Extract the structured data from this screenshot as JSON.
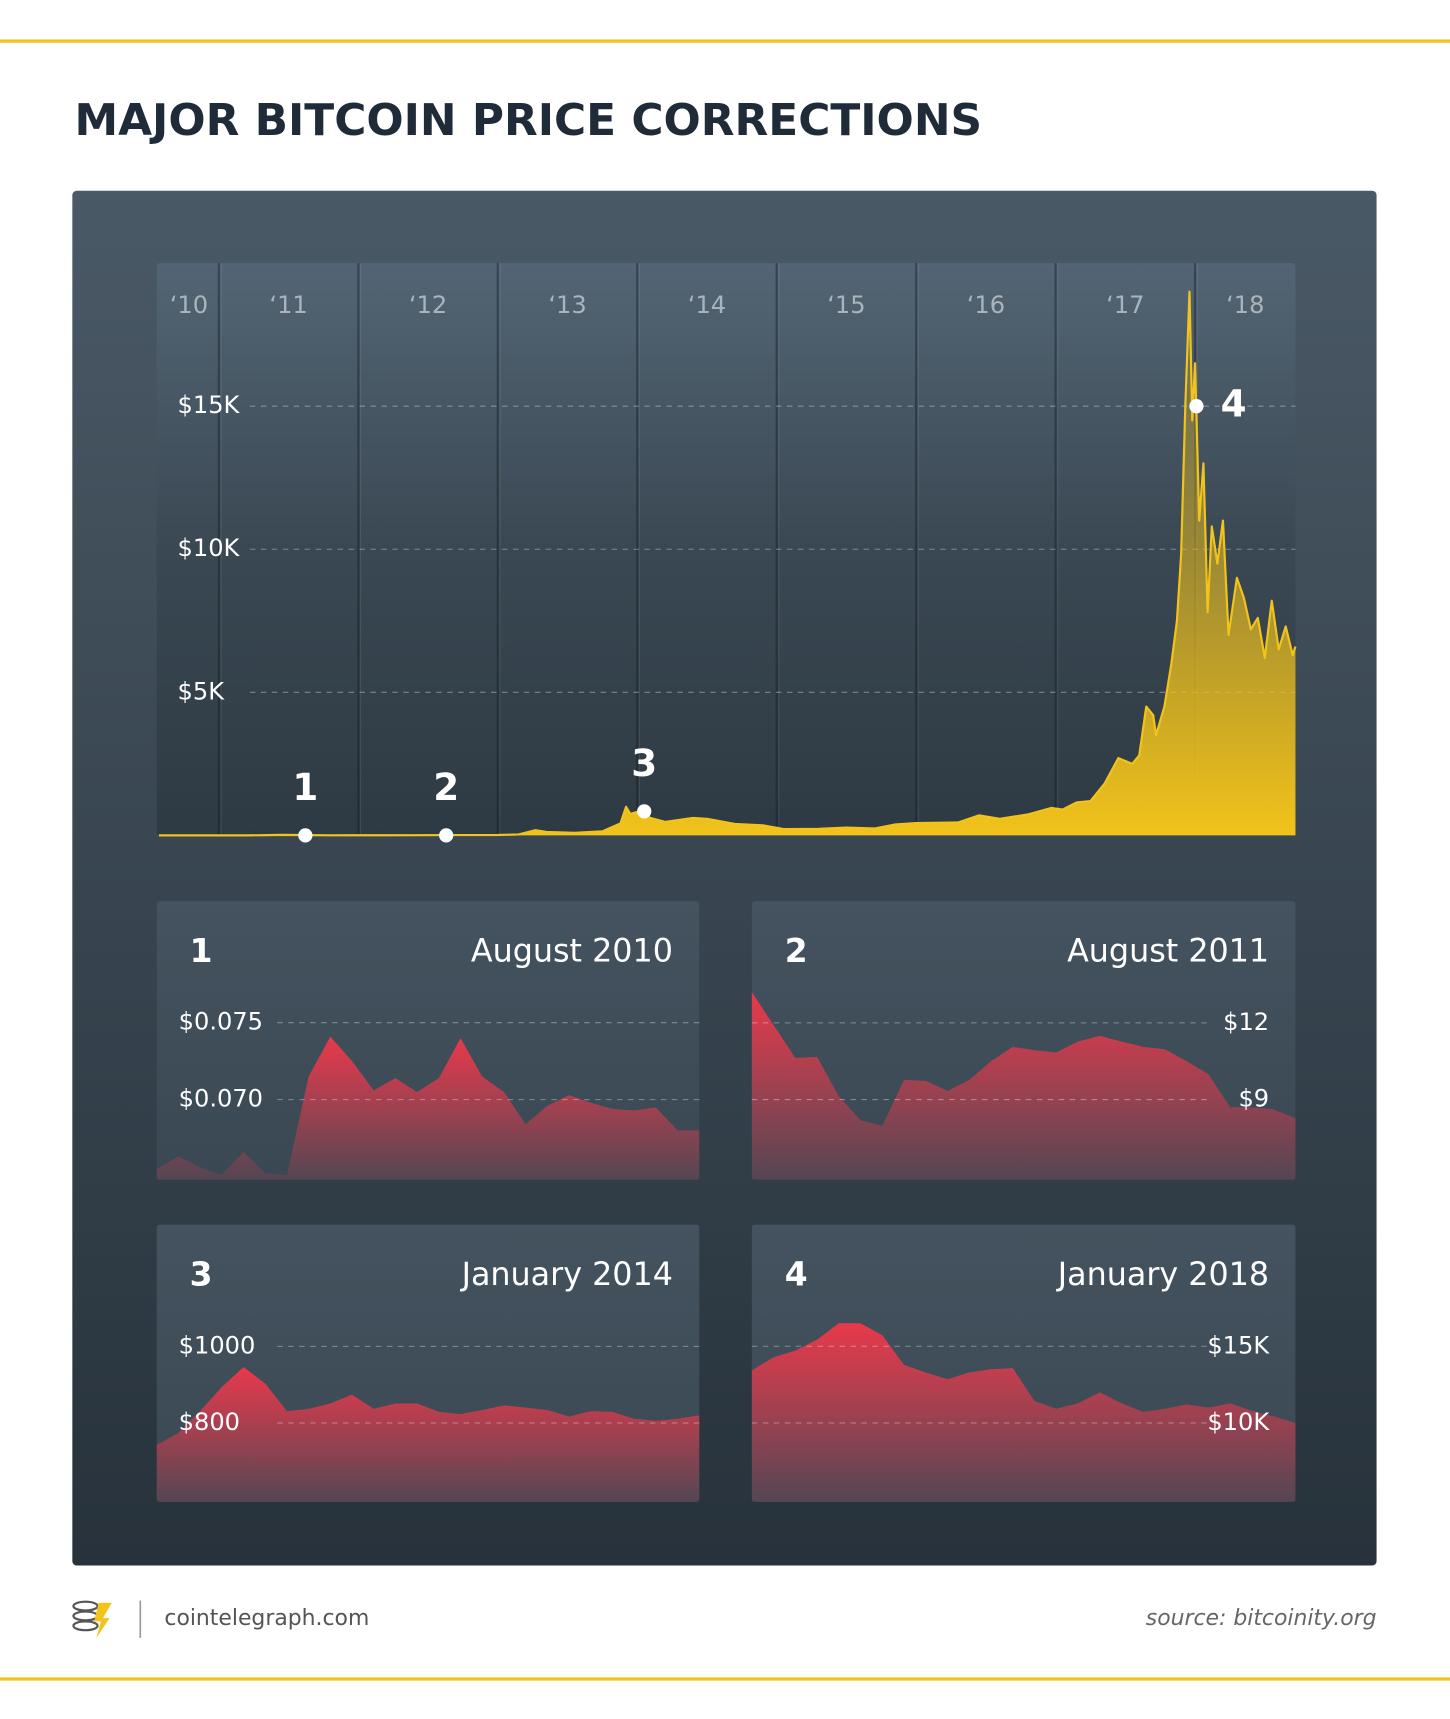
{
  "header": {
    "title": "MAJOR BITCOIN PRICE CORRECTIONS"
  },
  "footer": {
    "site": "cointelegraph.com",
    "source": "source: bitcoinity.org"
  },
  "chart_data": [
    {
      "type": "area",
      "color": "#f2c31b",
      "grid": true,
      "xlim": [
        2010.57,
        2018.72
      ],
      "xticks": [
        {
          "value": 2010,
          "label": "‘10"
        },
        {
          "value": 2011,
          "label": "‘11"
        },
        {
          "value": 2012,
          "label": "‘12"
        },
        {
          "value": 2013,
          "label": "‘13"
        },
        {
          "value": 2014,
          "label": "‘14"
        },
        {
          "value": 2015,
          "label": "‘15"
        },
        {
          "value": 2016,
          "label": "‘16"
        },
        {
          "value": 2017,
          "label": "‘17"
        },
        {
          "value": 2018,
          "label": "‘18"
        }
      ],
      "ylim": [
        0,
        20000
      ],
      "yticks": [
        {
          "value": 5000,
          "label": "$5K"
        },
        {
          "value": 10000,
          "label": "$10K"
        },
        {
          "value": 15000,
          "label": "$15K"
        }
      ],
      "x": [
        2010.57,
        2010.8,
        2011.0,
        2011.2,
        2011.35,
        2011.45,
        2011.55,
        2011.65,
        2011.8,
        2011.95,
        2012.2,
        2012.45,
        2012.65,
        2012.85,
        2013.0,
        2013.15,
        2013.27,
        2013.35,
        2013.55,
        2013.75,
        2013.88,
        2013.92,
        2013.95,
        2014.0,
        2014.1,
        2014.2,
        2014.4,
        2014.5,
        2014.7,
        2014.9,
        2015.05,
        2015.3,
        2015.5,
        2015.7,
        2015.85,
        2016.0,
        2016.3,
        2016.45,
        2016.6,
        2016.8,
        2016.97,
        2017.05,
        2017.15,
        2017.25,
        2017.35,
        2017.45,
        2017.55,
        2017.6,
        2017.65,
        2017.7,
        2017.72,
        2017.78,
        2017.83,
        2017.87,
        2017.9,
        2017.93,
        2017.96,
        2017.98,
        2018.0,
        2018.03,
        2018.06,
        2018.09,
        2018.12,
        2018.16,
        2018.2,
        2018.24,
        2018.3,
        2018.35,
        2018.4,
        2018.45,
        2018.5,
        2018.55,
        2018.6,
        2018.65,
        2018.7,
        2018.72
      ],
      "values": [
        0.07,
        0.2,
        0.3,
        0.9,
        8,
        17,
        14,
        10,
        3,
        4.7,
        5,
        6.7,
        12,
        11,
        13.5,
        33,
        180,
        120,
        90,
        140,
        420,
        1000,
        750,
        820,
        600,
        470,
        610,
        580,
        400,
        350,
        220,
        230,
        270,
        240,
        380,
        430,
        450,
        700,
        580,
        730,
        960,
        900,
        1150,
        1200,
        1800,
        2700,
        2500,
        2800,
        4500,
        4200,
        3500,
        4500,
        6000,
        7500,
        9800,
        15000,
        19000,
        14500,
        16500,
        11000,
        13000,
        7800,
        10800,
        9500,
        11000,
        7000,
        9000,
        8300,
        7200,
        7600,
        6200,
        8200,
        6500,
        7300,
        6300,
        6600
      ],
      "annotations": [
        {
          "label": "1",
          "x": 2011.62,
          "y": 0
        },
        {
          "label": "2",
          "x": 2012.63,
          "y": 0
        },
        {
          "label": "3",
          "x": 2014.05,
          "y": 840
        },
        {
          "label": "4",
          "x": 2018.01,
          "y": 15000
        }
      ]
    },
    {
      "type": "area",
      "label": "1",
      "title": "August 2010",
      "color": "#e8394b",
      "grid": true,
      "ytick_side": "left",
      "ylim": [
        0.0648,
        0.0777
      ],
      "yticks": [
        {
          "value": 0.07,
          "label": "$0.070"
        },
        {
          "value": 0.075,
          "label": "$0.075"
        }
      ],
      "values": [
        0.0655,
        0.0663,
        0.0656,
        0.0651,
        0.0666,
        0.0652,
        0.0651,
        0.0715,
        0.0741,
        0.0725,
        0.0706,
        0.0714,
        0.0705,
        0.0714,
        0.074,
        0.0715,
        0.0705,
        0.0684,
        0.0696,
        0.0703,
        0.0698,
        0.0694,
        0.0693,
        0.0695,
        0.068,
        0.068
      ]
    },
    {
      "type": "area",
      "label": "2",
      "title": "August 2011",
      "color": "#e8394b",
      "grid": true,
      "ytick_side": "right",
      "ylim": [
        5.87,
        13.63
      ],
      "yticks": [
        {
          "value": 9,
          "label": "$9"
        },
        {
          "value": 12,
          "label": "$12"
        }
      ],
      "values": [
        13.2,
        11.91,
        10.63,
        10.67,
        9.13,
        8.19,
        7.97,
        9.77,
        9.73,
        9.34,
        9.77,
        10.5,
        11.06,
        10.93,
        10.84,
        11.27,
        11.49,
        11.27,
        11.06,
        10.97,
        10.5,
        9.99,
        8.7,
        8.7,
        8.61,
        8.27
      ]
    },
    {
      "type": "area",
      "label": "3",
      "title": "January 2014",
      "color": "#e8394b",
      "grid": true,
      "ytick_side": "left",
      "ylim": [
        594,
        1109
      ],
      "yticks": [
        {
          "value": 800,
          "label": "$800"
        },
        {
          "value": 1000,
          "label": "$1000"
        }
      ],
      "values": [
        743,
        774,
        831,
        894,
        946,
        903,
        831,
        837,
        851,
        874,
        837,
        851,
        851,
        829,
        823,
        834,
        846,
        840,
        834,
        817,
        831,
        829,
        811,
        806,
        811,
        820
      ]
    },
    {
      "type": "area",
      "label": "4",
      "title": "January 2018",
      "color": "#e8394b",
      "grid": true,
      "ytick_side": "right",
      "ylim": [
        4857,
        17714
      ],
      "yticks": [
        {
          "value": 10000,
          "label": "$10K"
        },
        {
          "value": 15000,
          "label": "$15K"
        }
      ],
      "values": [
        13429,
        14286,
        14714,
        15429,
        16500,
        16500,
        15714,
        13786,
        13286,
        12857,
        13286,
        13500,
        13571,
        11429,
        10929,
        11286,
        12000,
        11286,
        10714,
        10929,
        11214,
        11000,
        11286,
        10786,
        10429,
        10000
      ]
    }
  ]
}
